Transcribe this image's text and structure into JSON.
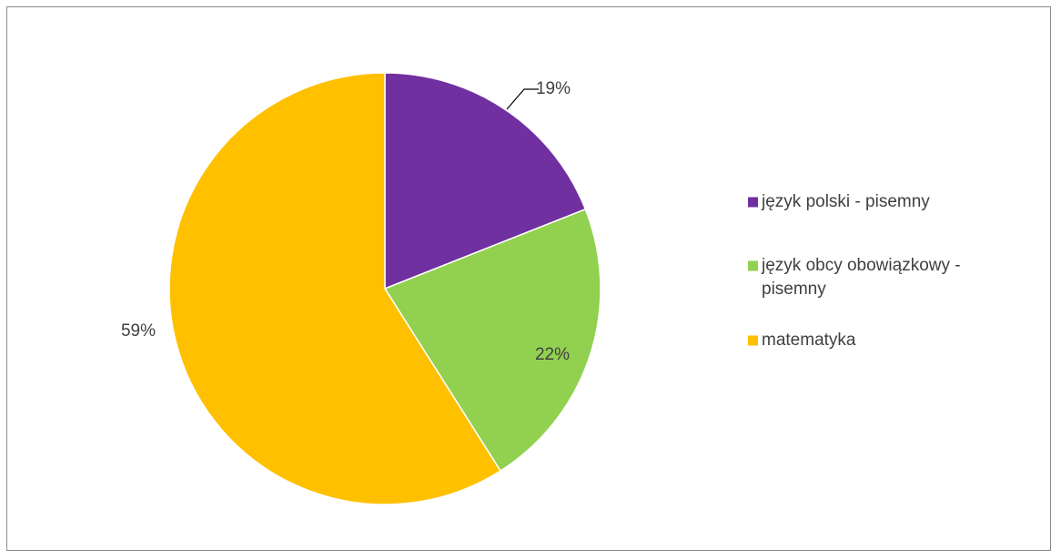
{
  "chart_data": {
    "type": "pie",
    "title": "",
    "legend_position": "right",
    "slices": [
      {
        "label": "język polski - pisemny",
        "legend_lines": [
          "język polski - pisemny"
        ],
        "value": 19,
        "value_label": "19%",
        "color": "#7030a0"
      },
      {
        "label": "język obcy obowiązkowy - pisemny",
        "legend_lines": [
          "język obcy obowiązkowy -",
          "pisemny"
        ],
        "value": 22,
        "value_label": "22%",
        "color": "#92d050"
      },
      {
        "label": "matematyka",
        "legend_lines": [
          "matematyka"
        ],
        "value": 59,
        "value_label": "59%",
        "color": "#ffc000"
      }
    ]
  }
}
